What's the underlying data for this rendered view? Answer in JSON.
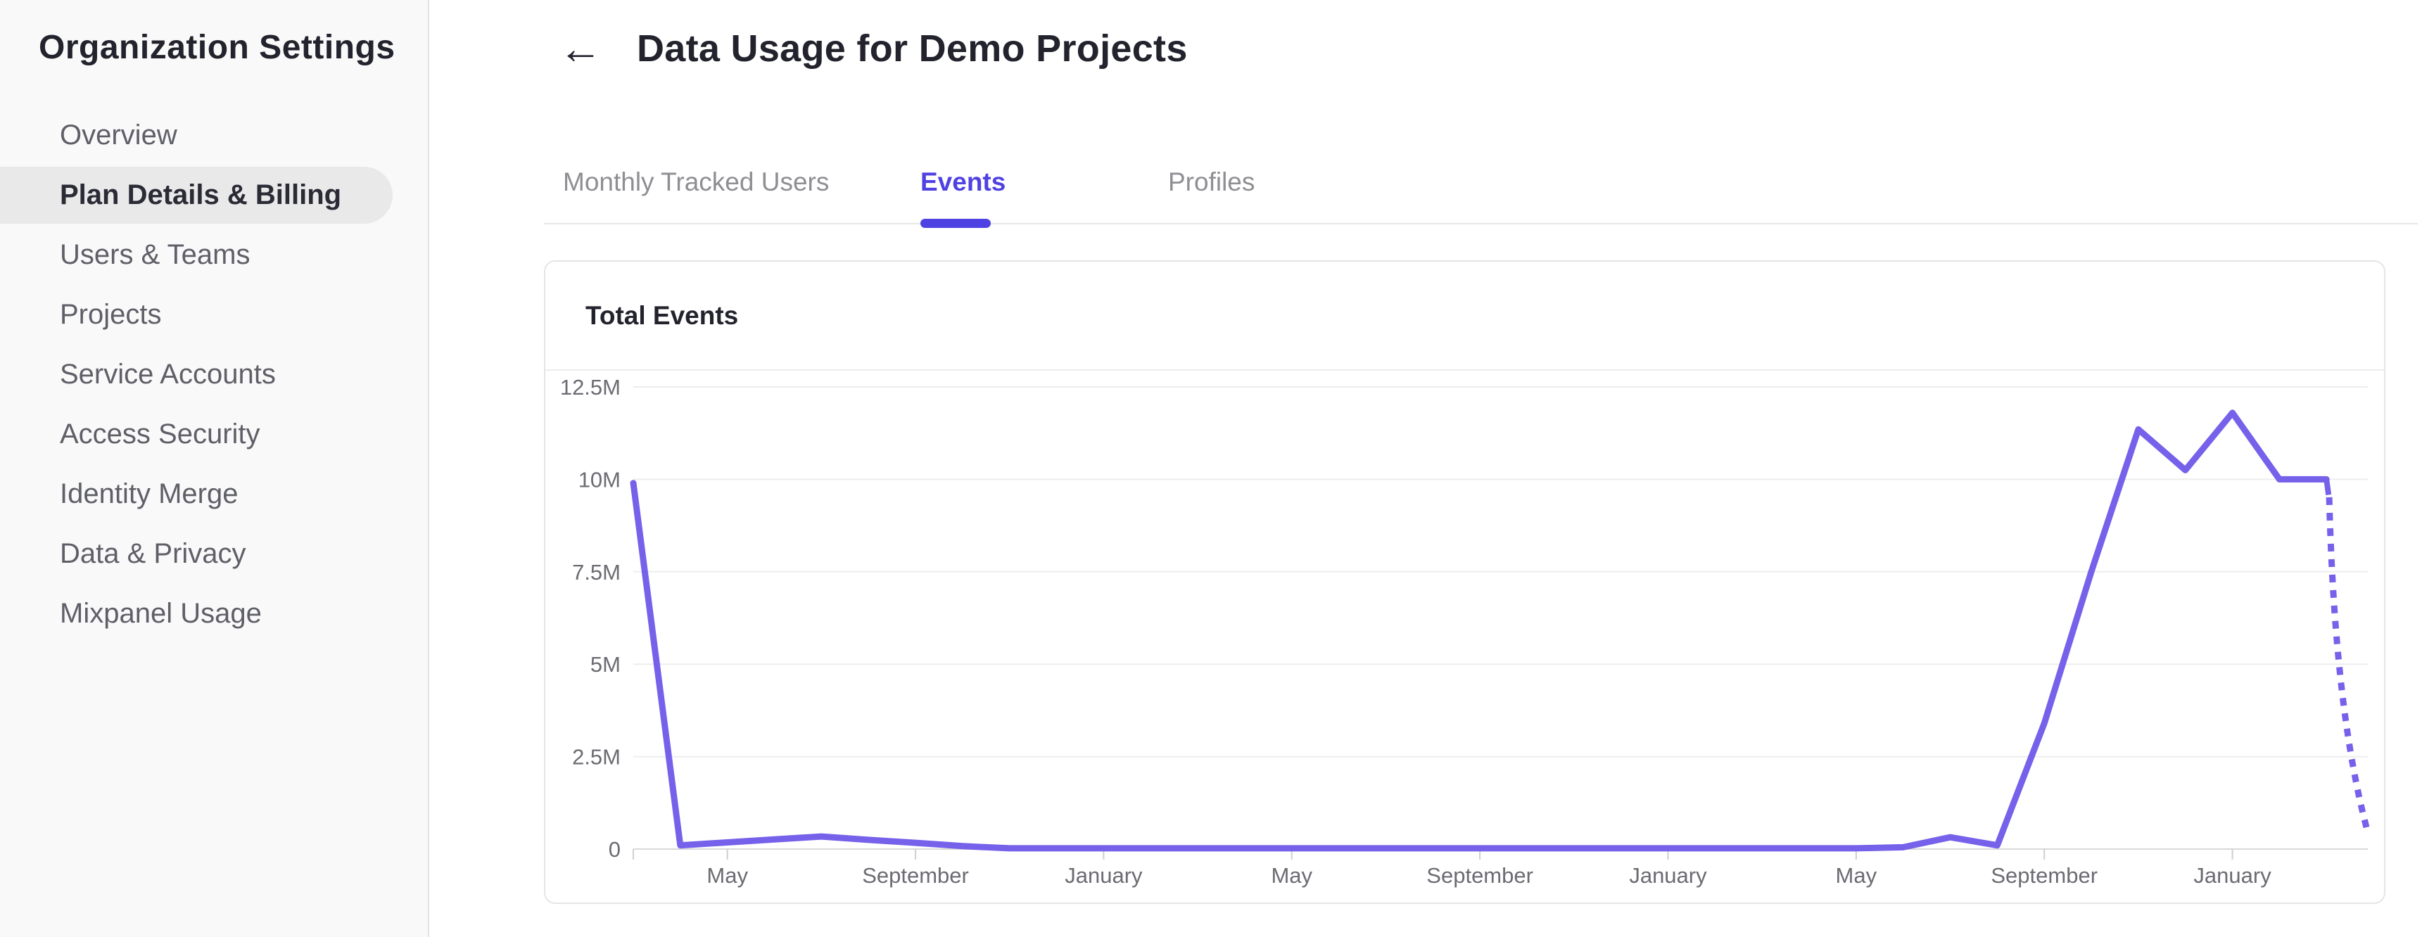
{
  "sidebar": {
    "title": "Organization Settings",
    "items": [
      {
        "label": "Overview",
        "selected": false
      },
      {
        "label": "Plan Details & Billing",
        "selected": true
      },
      {
        "label": "Users & Teams",
        "selected": false
      },
      {
        "label": "Projects",
        "selected": false
      },
      {
        "label": "Service Accounts",
        "selected": false
      },
      {
        "label": "Access Security",
        "selected": false
      },
      {
        "label": "Identity Merge",
        "selected": false
      },
      {
        "label": "Data & Privacy",
        "selected": false
      },
      {
        "label": "Mixpanel Usage",
        "selected": false
      }
    ]
  },
  "header": {
    "back_icon": "←",
    "title": "Data Usage for Demo Projects"
  },
  "tabs": [
    {
      "label": "Monthly Tracked Users",
      "active": false
    },
    {
      "label": "Events",
      "active": true
    },
    {
      "label": "Profiles",
      "active": false
    }
  ],
  "card": {
    "title": "Total Events"
  },
  "colors": {
    "accent": "#4f42e2",
    "line": "#7561ea",
    "gridline": "#ededed",
    "axis_line": "#d8d8d8",
    "tick": "#cfcfcf",
    "axis_text": "#6b6b72",
    "sidebar_bg": "#f9f9f9",
    "selected_pill": "#e9e9ea"
  },
  "chart_data": {
    "type": "line",
    "title": "Total Events",
    "xlabel": "",
    "ylabel": "",
    "grid": "horizontal",
    "legend_position": "none",
    "ylim": [
      0,
      12500000
    ],
    "y_tick_labels": [
      "12.5M",
      "10M",
      "7.5M",
      "5M",
      "2.5M",
      "0"
    ],
    "x_tick_labels": [
      "May",
      "September",
      "January",
      "May",
      "September",
      "January",
      "May",
      "September",
      "January"
    ],
    "x_tick_month_indices": [
      2,
      6,
      10,
      14,
      18,
      22,
      26,
      30,
      34
    ],
    "months": [
      "Mar",
      "Apr",
      "May",
      "Jun",
      "Jul",
      "Aug",
      "Sep",
      "Oct",
      "Nov",
      "Dec",
      "Jan",
      "Feb",
      "Mar",
      "Apr",
      "May",
      "Jun",
      "Jul",
      "Aug",
      "Sep",
      "Oct",
      "Nov",
      "Dec",
      "Jan",
      "Feb",
      "Mar",
      "Apr",
      "May",
      "Jun",
      "Jul",
      "Aug",
      "Sep",
      "Oct",
      "Nov",
      "Dec",
      "Jan",
      "Feb",
      "Mar"
    ],
    "series": [
      {
        "name": "Total Events",
        "values_millions": [
          9.9,
          0.1,
          0.18,
          0.26,
          0.34,
          0.25,
          0.17,
          0.08,
          0.02,
          0.02,
          0.02,
          0.02,
          0.02,
          0.02,
          0.02,
          0.02,
          0.02,
          0.02,
          0.02,
          0.02,
          0.02,
          0.02,
          0.02,
          0.02,
          0.02,
          0.02,
          0.02,
          0.05,
          0.32,
          0.1,
          3.4,
          7.5,
          11.35,
          10.25,
          11.8,
          10.0,
          10.0
        ]
      }
    ],
    "projection": {
      "month": "Apr",
      "value_millions": 0.45,
      "style": "dotted"
    }
  }
}
